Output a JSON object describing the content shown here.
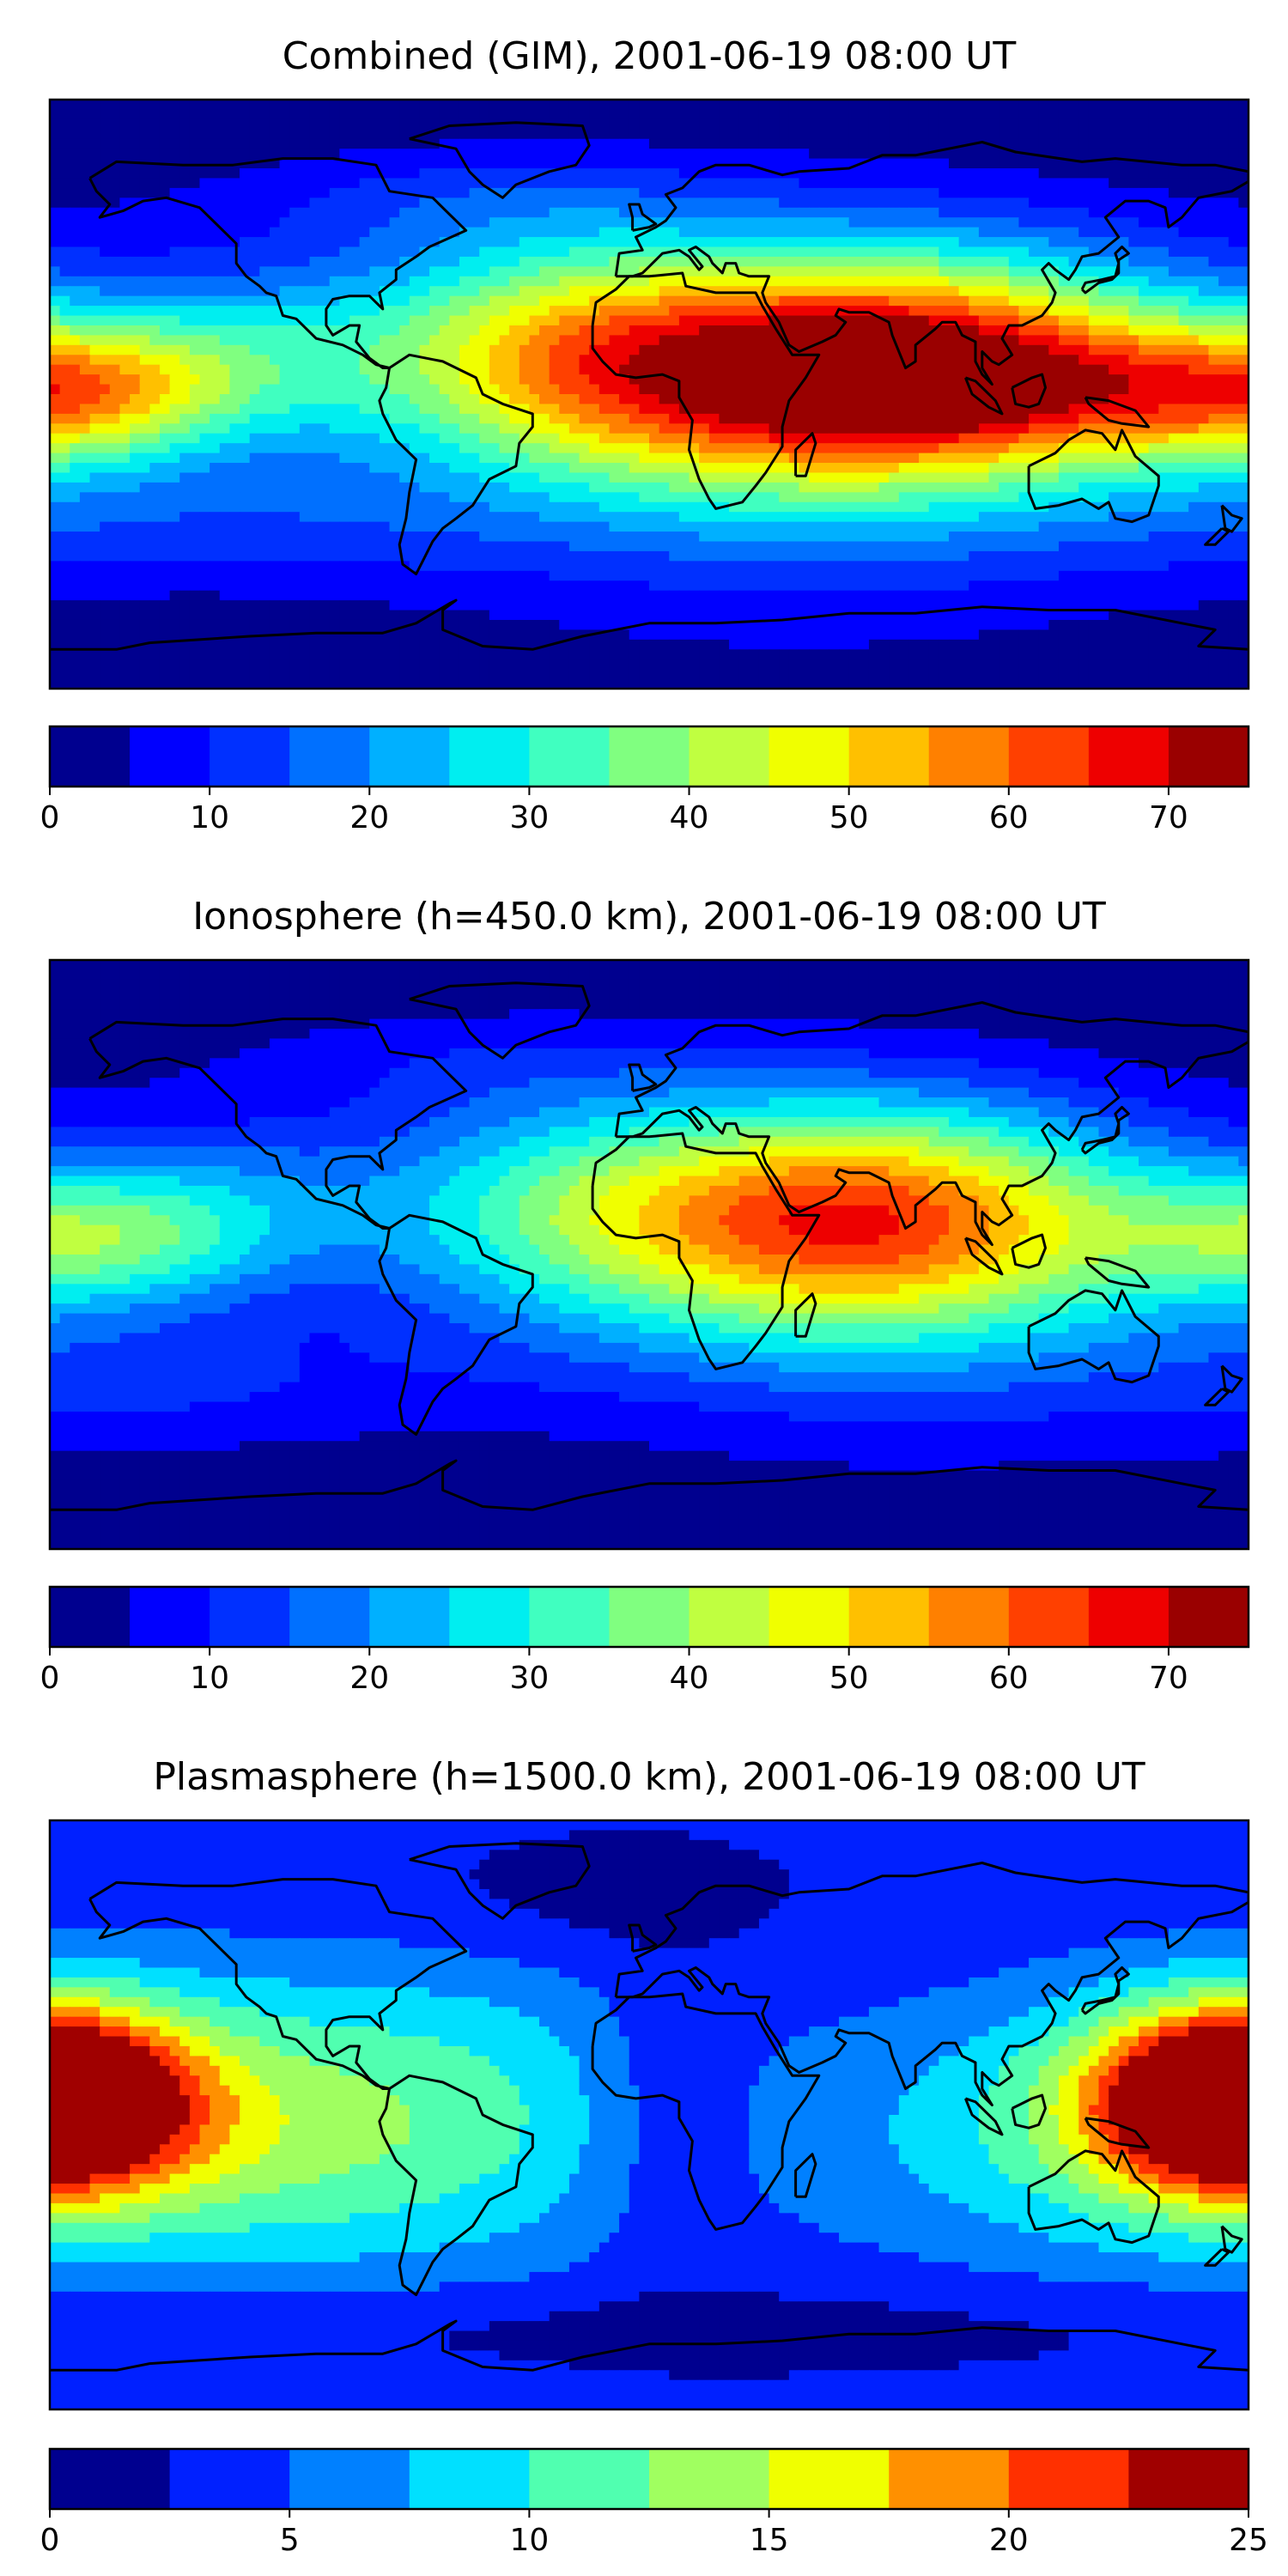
{
  "colors": {
    "jet15": [
      "#00008f",
      "#0000ff",
      "#0030ff",
      "#0070ff",
      "#00b0ff",
      "#00eef0",
      "#40ffc0",
      "#80ff80",
      "#c0ff40",
      "#f0ff00",
      "#ffc000",
      "#ff8000",
      "#ff4000",
      "#ee0000",
      "#9a0000"
    ],
    "jet10": [
      "#00008f",
      "#0020ff",
      "#0080ff",
      "#00e0ff",
      "#50ffb0",
      "#a0ff60",
      "#f0ff00",
      "#ff9000",
      "#ff3000",
      "#a00000"
    ],
    "coast": "#000000"
  },
  "chart_data": [
    {
      "type": "heatmap",
      "title": "Combined (GIM), 2001-06-19 08:00 UT",
      "colorbar": {
        "ticks": [
          "0",
          "10",
          "20",
          "30",
          "40",
          "50",
          "60",
          "70"
        ],
        "range": [
          0,
          75
        ],
        "step": 5
      },
      "field": {
        "background": 0,
        "blobs": [
          {
            "lon": 65,
            "lat": 8,
            "slon": 70,
            "slat": 25,
            "amp": 68
          },
          {
            "lon": 100,
            "lat": 2,
            "slon": 40,
            "slat": 12,
            "amp": 12
          },
          {
            "lon": 45,
            "lat": -12,
            "slon": 90,
            "slat": 40,
            "amp": 18
          },
          {
            "lon": -175,
            "lat": 0,
            "slon": 35,
            "slat": 15,
            "amp": 38
          },
          {
            "lon": -120,
            "lat": 12,
            "slon": 35,
            "slat": 20,
            "amp": 20
          },
          {
            "lon": -35,
            "lat": 15,
            "slon": 40,
            "slat": 25,
            "amp": 22
          },
          {
            "lon": -60,
            "lat": 60,
            "slon": 60,
            "slat": 12,
            "amp": 8
          },
          {
            "lon": -130,
            "lat": -40,
            "slon": 60,
            "slat": 15,
            "amp": 10
          }
        ]
      }
    },
    {
      "type": "heatmap",
      "title": "Ionosphere  (h=450.0 km), 2001-06-19 08:00 UT",
      "colorbar": {
        "ticks": [
          "0",
          "10",
          "20",
          "30",
          "40",
          "50",
          "60",
          "70"
        ],
        "range": [
          0,
          75
        ],
        "step": 5
      },
      "field": {
        "background": 0,
        "blobs": [
          {
            "lon": 60,
            "lat": 12,
            "slon": 60,
            "slat": 25,
            "amp": 55
          },
          {
            "lon": 80,
            "lat": -12,
            "slon": 90,
            "slat": 35,
            "amp": 14
          },
          {
            "lon": -170,
            "lat": 5,
            "slon": 35,
            "slat": 15,
            "amp": 26
          },
          {
            "lon": -120,
            "lat": 15,
            "slon": 35,
            "slat": 20,
            "amp": 14
          },
          {
            "lon": -35,
            "lat": 15,
            "slon": 40,
            "slat": 25,
            "amp": 16
          },
          {
            "lon": -60,
            "lat": 60,
            "slon": 60,
            "slat": 12,
            "amp": 6
          },
          {
            "lon": -130,
            "lat": -40,
            "slon": 60,
            "slat": 15,
            "amp": 8
          }
        ]
      }
    },
    {
      "type": "heatmap",
      "title": "Plasmasphere (h=1500.0 km), 2001-06-19 08:00 UT",
      "colorbar": {
        "ticks": [
          "0",
          "5",
          "10",
          "15",
          "20",
          "25"
        ],
        "range": [
          0,
          25
        ],
        "step": 2.5
      },
      "field": {
        "background": 3,
        "blobs": [
          {
            "lon": -180,
            "lat": 5,
            "slon": 30,
            "slat": 20,
            "amp": 13
          },
          {
            "lon": 175,
            "lat": 5,
            "slon": 30,
            "slat": 20,
            "amp": 15
          },
          {
            "lon": 130,
            "lat": -5,
            "slon": 55,
            "slat": 30,
            "amp": 7
          },
          {
            "lon": -60,
            "lat": 0,
            "slon": 55,
            "slat": 35,
            "amp": 7
          },
          {
            "lon": -130,
            "lat": -5,
            "slon": 45,
            "slat": 30,
            "amp": 6
          },
          {
            "lon": 5,
            "lat": 0,
            "slon": 18,
            "slat": 30,
            "amp": -3
          },
          {
            "lon": -20,
            "lat": 65,
            "slon": 45,
            "slat": 15,
            "amp": -2
          },
          {
            "lon": 0,
            "lat": -65,
            "slon": 150,
            "slat": 10,
            "amp": -2
          }
        ]
      }
    }
  ]
}
